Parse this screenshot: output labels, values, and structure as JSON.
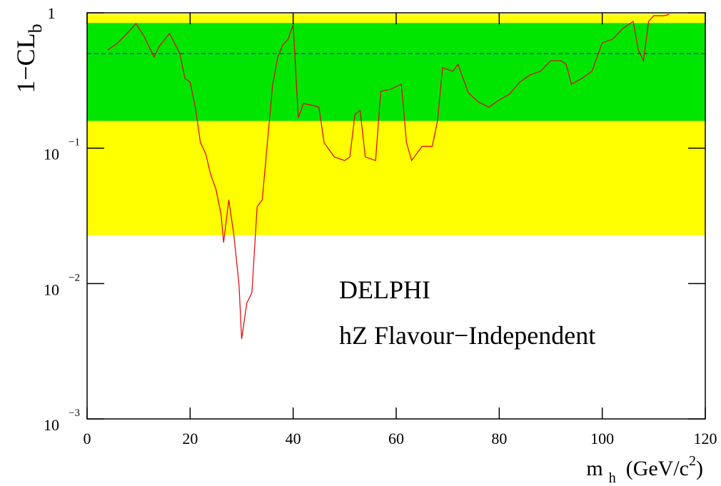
{
  "chart_data": {
    "type": "line",
    "y_label": {
      "text": "1−CL",
      "sub": "b"
    },
    "x_label": {
      "text": "m",
      "sub": "h",
      "unit": "(GeV/c",
      "sup": "2",
      "close": ")"
    },
    "annotations": [
      "DELPHI",
      "hZ Flavour−Independent"
    ],
    "log_y": true,
    "xlim": [
      0,
      120
    ],
    "ylim": [
      0.001,
      1
    ],
    "xticks": [
      0,
      20,
      40,
      60,
      80,
      100,
      120
    ],
    "yticks": [
      {
        "value": 0.001,
        "label": "10",
        "exponent": "−3"
      },
      {
        "value": 0.01,
        "label": "10",
        "exponent": "−2"
      },
      {
        "value": 0.1,
        "label": "10",
        "exponent": "−1"
      },
      1
    ],
    "bands": [
      {
        "range": [
          0.0228,
          0.977
        ],
        "color": "#ffff00"
      },
      {
        "range": [
          0.159,
          0.841
        ],
        "color": "#00e600"
      }
    ],
    "reference_line": {
      "value": 0.5,
      "color": "#0000ff",
      "dashed": true
    },
    "color": "#e00000",
    "x": [
      4,
      6,
      8,
      9.5,
      11,
      13,
      14,
      16,
      18,
      19,
      20,
      21,
      22,
      23,
      24,
      25,
      26,
      26.5,
      27.5,
      28.5,
      29.5,
      30,
      31,
      32,
      33,
      34,
      35,
      36,
      37,
      38,
      39,
      40,
      41,
      42,
      44,
      45,
      46,
      48,
      50,
      51,
      52,
      53,
      54,
      56,
      57,
      59,
      61,
      62,
      63,
      65,
      67,
      68,
      69,
      71,
      72,
      74,
      76,
      78,
      80,
      82,
      84,
      86,
      88,
      90,
      92,
      93,
      94,
      96,
      98,
      100,
      102,
      104,
      106,
      107,
      108,
      109,
      110,
      112,
      113
    ],
    "values": [
      0.532,
      0.601,
      0.721,
      0.834,
      0.678,
      0.471,
      0.565,
      0.703,
      0.501,
      0.327,
      0.308,
      0.201,
      0.11,
      0.0916,
      0.0636,
      0.0499,
      0.0326,
      0.0201,
      0.0416,
      0.0227,
      0.00969,
      0.0039,
      0.00716,
      0.00859,
      0.0368,
      0.0416,
      0.11,
      0.29,
      0.471,
      0.579,
      0.638,
      0.814,
      0.168,
      0.214,
      0.206,
      0.201,
      0.11,
      0.0861,
      0.0811,
      0.0861,
      0.178,
      0.19,
      0.0861,
      0.0811,
      0.263,
      0.273,
      0.297,
      0.11,
      0.0811,
      0.103,
      0.103,
      0.158,
      0.393,
      0.37,
      0.417,
      0.257,
      0.219,
      0.201,
      0.227,
      0.251,
      0.308,
      0.348,
      0.37,
      0.443,
      0.443,
      0.417,
      0.297,
      0.327,
      0.37,
      0.601,
      0.638,
      0.766,
      0.865,
      0.532,
      0.443,
      0.865,
      0.953,
      0.953,
      0.976
    ]
  }
}
